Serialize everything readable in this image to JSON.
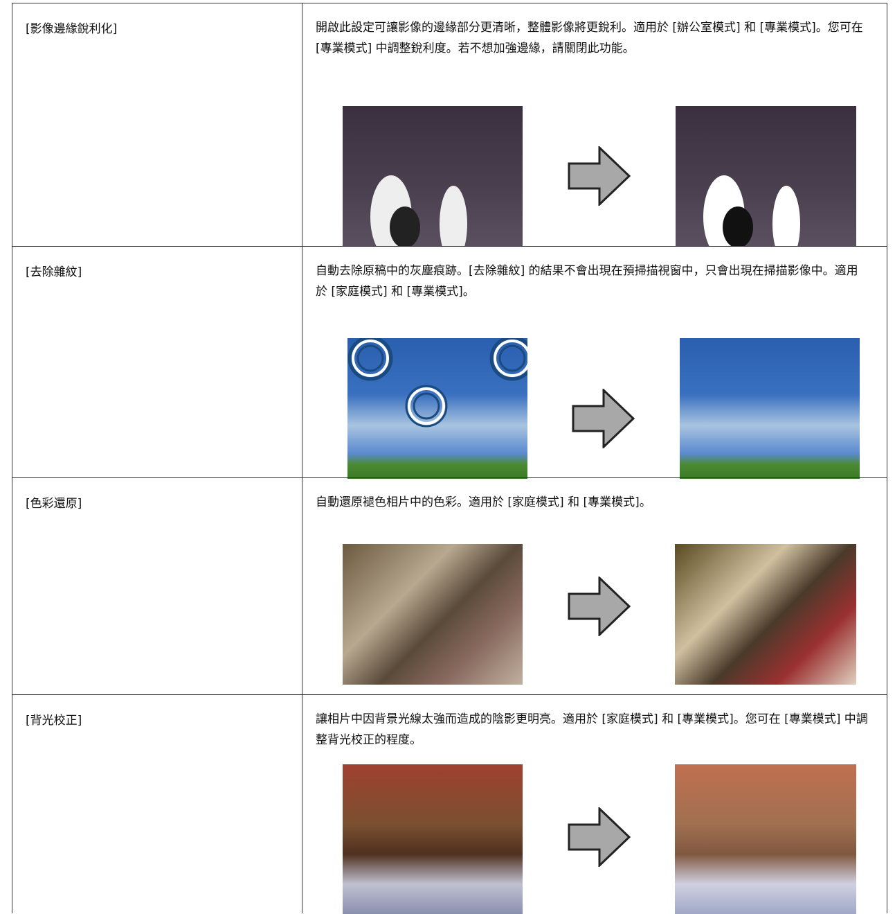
{
  "table": {
    "rows": [
      {
        "label": "[影像邊緣銳利化]",
        "description": "開啟此設定可讓影像的邊緣部分更清晰，整體影像將更銳利。適用於 [辦公室模式] 和 [專業模式]。您可在 [專業模式] 中調整銳利度。若不想加強邊緣，請關閉此功能。"
      },
      {
        "label": "[去除雜紋]",
        "description": "自動去除原稿中的灰塵痕跡。[去除雜紋] 的結果不會出現在預掃描視窗中，只會出現在掃描影像中。適用於 [家庭模式] 和 [專業模式]。"
      },
      {
        "label": "[色彩還原]",
        "description": "自動還原褪色相片中的色彩。適用於 [家庭模式] 和 [專業模式]。"
      },
      {
        "label": "[背光校正]",
        "description": "讓相片中因背景光線太強而造成的陰影更明亮。適用於 [家庭模式] 和 [專業模式]。您可在 [專業模式] 中調整背光校正的程度。"
      }
    ]
  }
}
